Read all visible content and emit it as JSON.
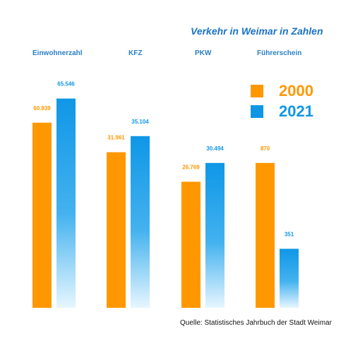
{
  "chart_data": {
    "type": "bar",
    "title": "Verkehr in Weimar in Zahlen",
    "categories": [
      "Einwohnerzahl",
      "KFZ",
      "PKW",
      "Führerschein"
    ],
    "series": [
      {
        "name": "2000",
        "color": "#ff9800",
        "values_label": [
          "60.839",
          "31.961",
          "26.769",
          "870"
        ],
        "fill": [
          0.69,
          0.58,
          0.47,
          0.54
        ]
      },
      {
        "name": "2021",
        "color": "#0f97e6",
        "values_label": [
          "65.546",
          "35.104",
          "30.494",
          "351"
        ],
        "fill": [
          0.78,
          0.64,
          0.54,
          0.22
        ]
      }
    ],
    "source": "Quelle: Statistisches Jahrbuch der Stadt Weimar",
    "grid": false,
    "legend": "top-right"
  }
}
